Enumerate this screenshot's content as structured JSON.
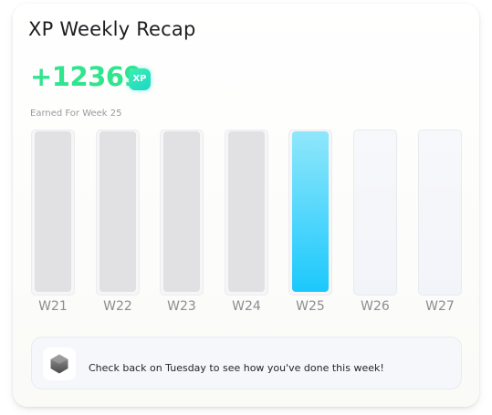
{
  "card": {
    "title": "XP Weekly Recap",
    "xp_amount": "+12369",
    "xp_badge": "XP",
    "subtitle": "Earned For Week 25"
  },
  "weeks": [
    {
      "label": "W21",
      "state": "past",
      "fill_fraction": 1.0
    },
    {
      "label": "W22",
      "state": "past",
      "fill_fraction": 1.0
    },
    {
      "label": "W23",
      "state": "past",
      "fill_fraction": 1.0
    },
    {
      "label": "W24",
      "state": "past",
      "fill_fraction": 1.0
    },
    {
      "label": "W25",
      "state": "current",
      "fill_fraction": 1.0
    },
    {
      "label": "W26",
      "state": "future",
      "fill_fraction": 0
    },
    {
      "label": "W27",
      "state": "future",
      "fill_fraction": 0
    }
  ],
  "notice": {
    "icon": "hexagon-badge-icon",
    "text": "Check back on Tuesday to see how you've done this week!"
  },
  "colors": {
    "xp_green": "#2fe58d",
    "current_bar": "#1cc8fc",
    "past_bar": "#e1e1e4"
  }
}
